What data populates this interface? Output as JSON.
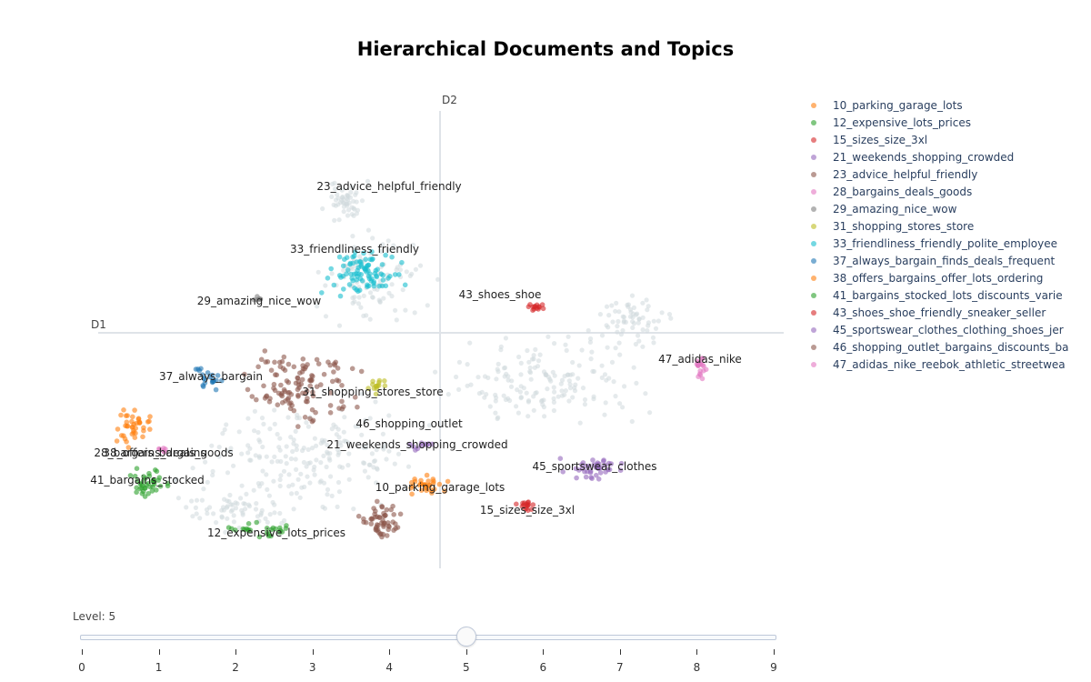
{
  "title": "Hierarchical Documents and Topics",
  "chart_data": {
    "type": "scatter",
    "title": "Hierarchical Documents and Topics",
    "xlabel": "D1",
    "ylabel": "D2",
    "legend_position": "right",
    "series": [
      {
        "name": "10_parking_garage_lots",
        "color": "#ff7f0e",
        "annotation": "10_parking_garage_lots"
      },
      {
        "name": "12_expensive_lots_prices",
        "color": "#2ca02c",
        "annotation": "12_expensive_lots_prices"
      },
      {
        "name": "15_sizes_size_3xl",
        "color": "#d62728",
        "annotation": "15_sizes_size_3xl"
      },
      {
        "name": "21_weekends_shopping_crowded",
        "color": "#9467bd",
        "annotation": "21_weekends_shopping_crowded"
      },
      {
        "name": "23_advice_helpful_friendly",
        "color": "#8c564b",
        "annotation": "23_advice_helpful_friendly"
      },
      {
        "name": "28_bargains_deals_goods",
        "color": "#e377c2",
        "annotation": "28_bargains_deals_goods"
      },
      {
        "name": "29_amazing_nice_wow",
        "color": "#7f7f7f",
        "annotation": "29_amazing_nice_wow"
      },
      {
        "name": "31_shopping_stores_store",
        "color": "#bcbd22",
        "annotation": "31_shopping_stores_store"
      },
      {
        "name": "33_friendliness_friendly_polite_employee",
        "color": "#17becf",
        "annotation": "33_friendliness_friendly"
      },
      {
        "name": "37_always_bargain_finds_deals_frequent",
        "color": "#1f77b4",
        "annotation": "37_always_bargain"
      },
      {
        "name": "38_offers_bargains_offer_lots_ordering",
        "color": "#ff7f0e",
        "annotation": "38_offers_bargains"
      },
      {
        "name": "41_bargains_stocked_lots_discounts_varie",
        "color": "#2ca02c",
        "annotation": "41_bargains_stocked"
      },
      {
        "name": "43_shoes_shoe_friendly_sneaker_seller",
        "color": "#d62728",
        "annotation": "43_shoes_shoe"
      },
      {
        "name": "45_sportswear_clothes_clothing_shoes_jer",
        "color": "#9467bd",
        "annotation": "45_sportswear_clothes"
      },
      {
        "name": "46_shopping_outlet_bargains_discounts_ba",
        "color": "#8c564b",
        "annotation": "46_shopping_outlet"
      },
      {
        "name": "47_adidas_nike_reebok_athletic_streetwea",
        "color": "#e377c2",
        "annotation": "47_adidas_nike"
      }
    ]
  },
  "slider": {
    "label": "Level: 5",
    "value": 5,
    "min": 0,
    "max": 9,
    "ticks": [
      "0",
      "1",
      "2",
      "3",
      "4",
      "5",
      "6",
      "7",
      "8",
      "9"
    ]
  }
}
